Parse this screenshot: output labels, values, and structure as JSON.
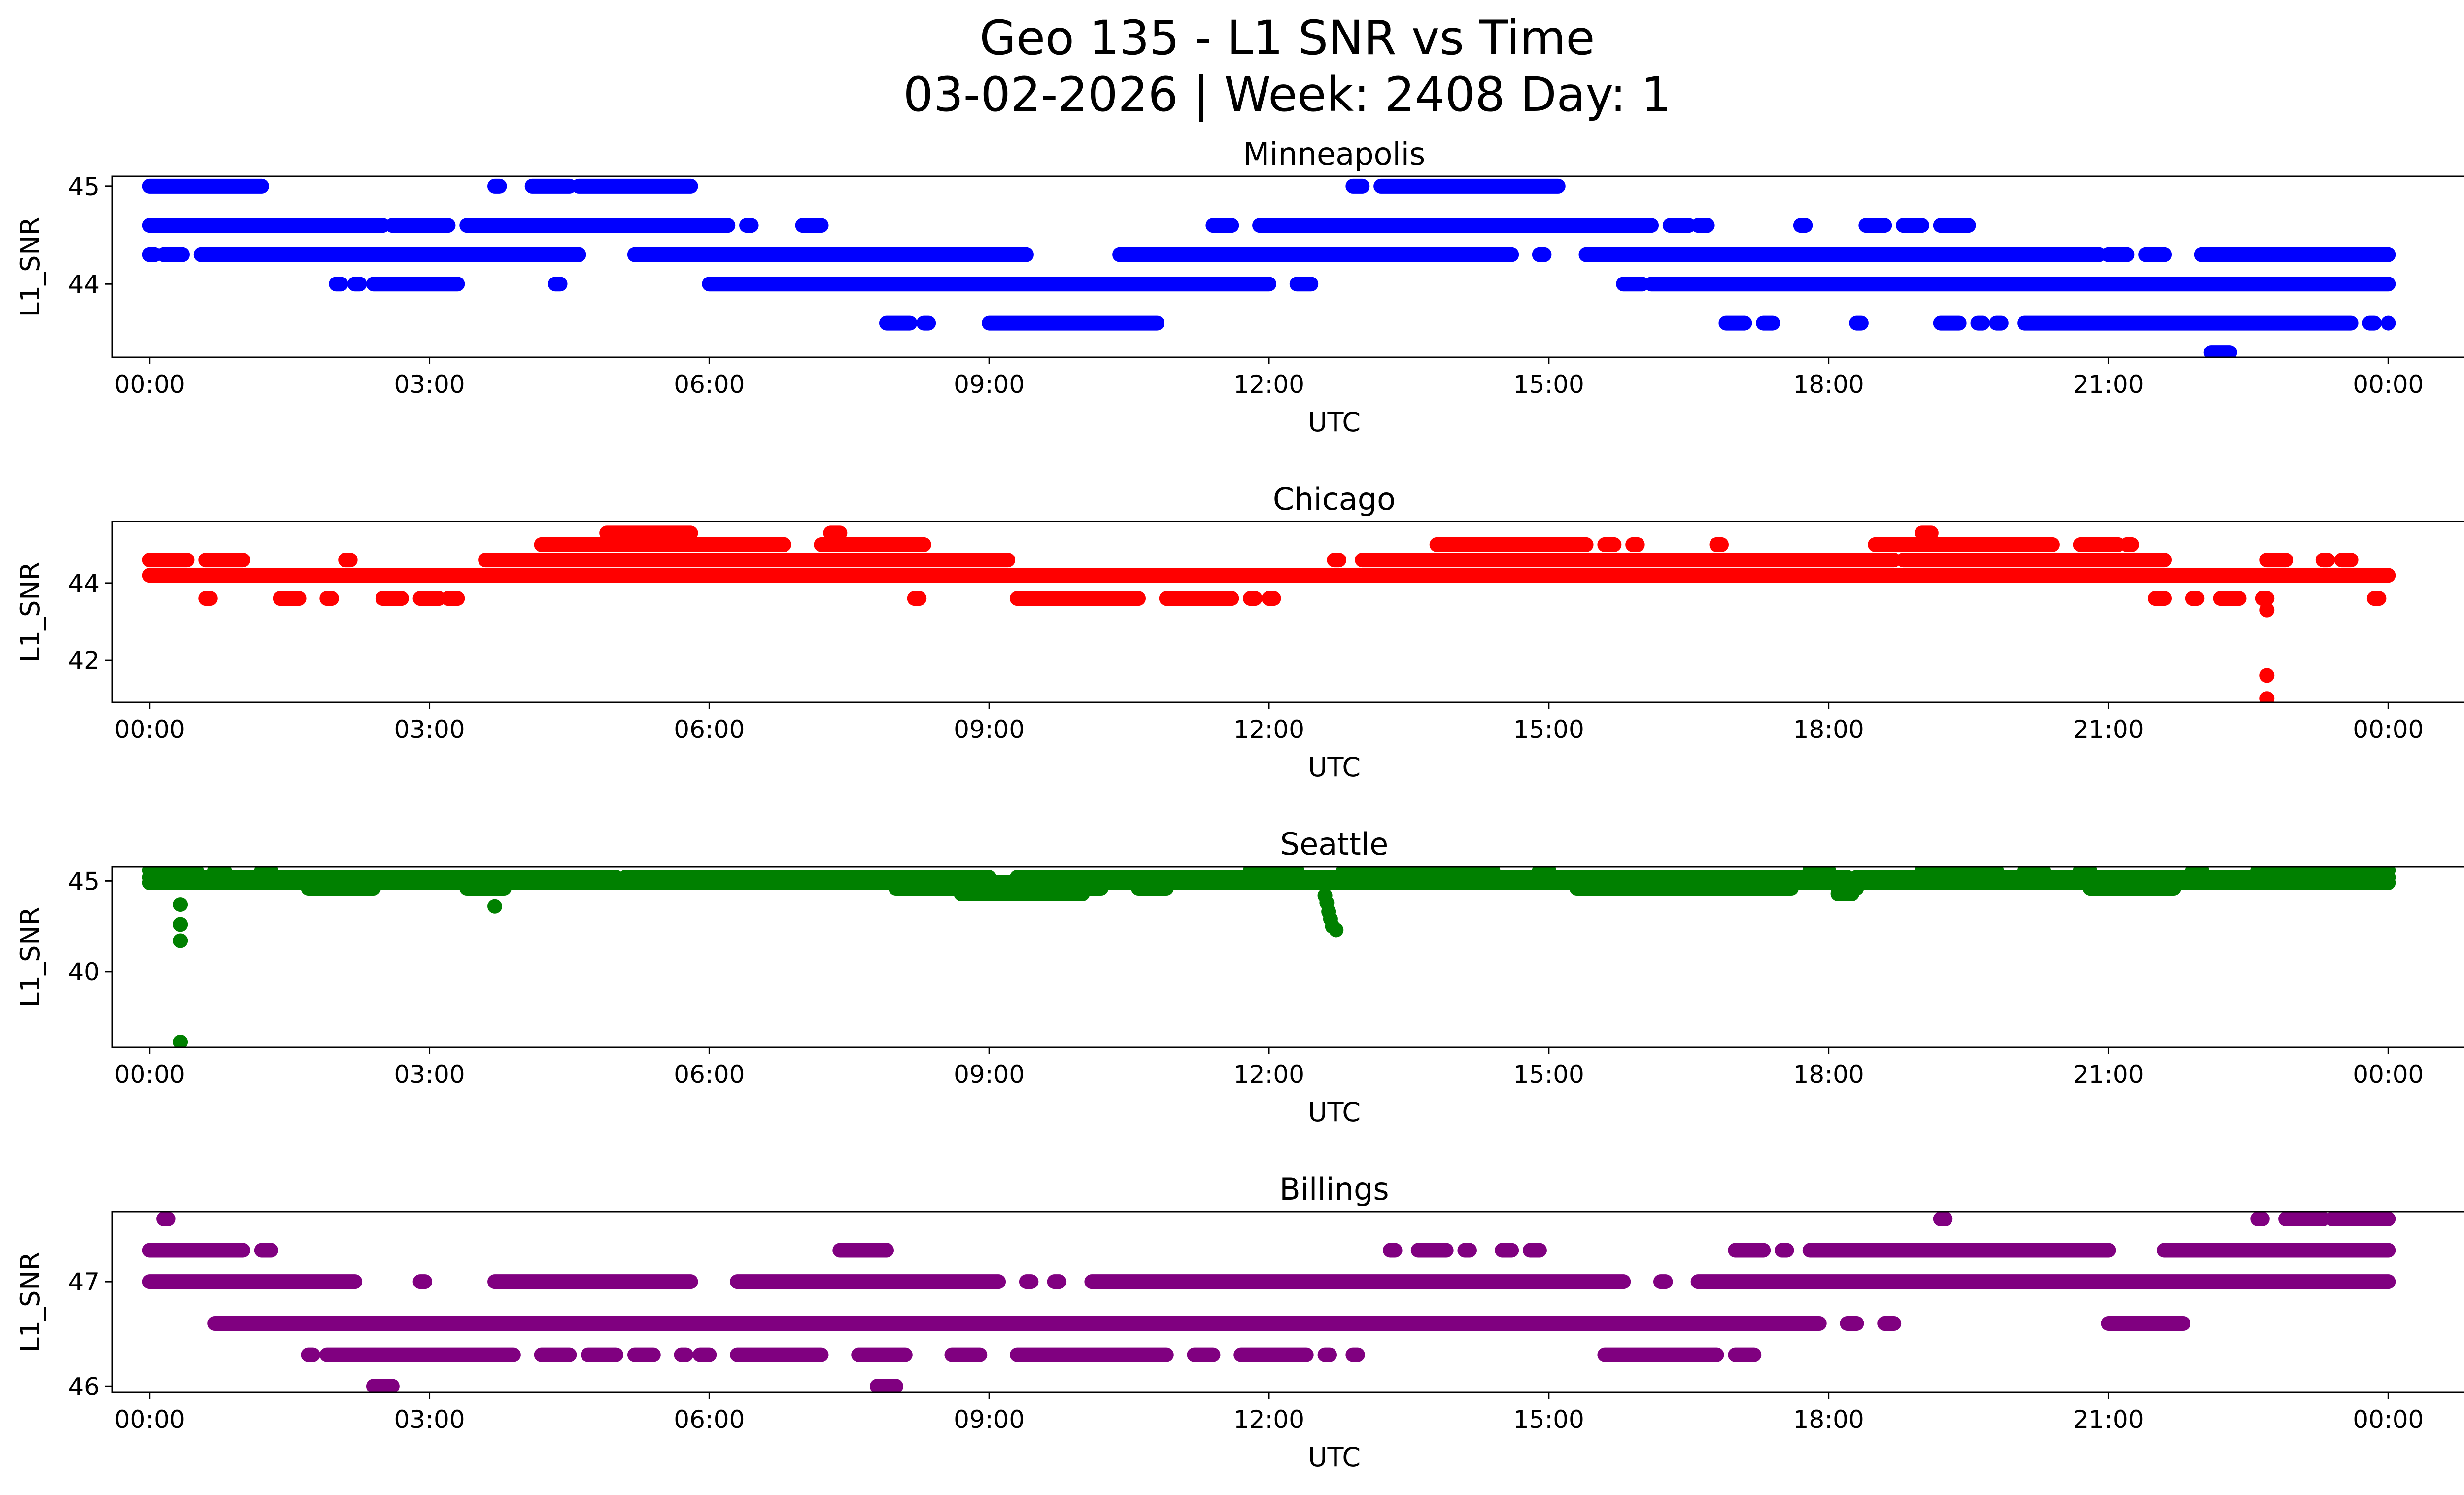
{
  "chart_data": {
    "type": "scatter",
    "title_line1": "Geo 135 - L1 SNR vs Time",
    "title_line2": "03-02-2026 | Week: 2408 Day: 1",
    "xlabel": "UTC",
    "ylabel": "L1_SNR",
    "x_range_hours": [
      -0.4,
      25.8
    ],
    "x_tick_hours": [
      0,
      3,
      6,
      9,
      12,
      15,
      18,
      21,
      24
    ],
    "x_tick_labels": [
      "00:00",
      "03:00",
      "06:00",
      "09:00",
      "12:00",
      "15:00",
      "18:00",
      "21:00",
      "00:00"
    ],
    "panels": [
      {
        "name": "Minneapolis",
        "color": "#0000ff",
        "ylim": [
          43.25,
          45.1
        ],
        "yticks": [
          44,
          45
        ],
        "ytick_labels": [
          "44",
          "45"
        ],
        "bands": [
          {
            "y": 45.0,
            "ranges": [
              [
                0.0,
                1.2
              ],
              [
                3.7,
                3.75
              ],
              [
                4.1,
                4.5
              ],
              [
                4.6,
                5.8
              ],
              [
                12.9,
                13.0
              ],
              [
                13.2,
                15.1
              ]
            ]
          },
          {
            "y": 44.6,
            "ranges": [
              [
                0.0,
                2.5
              ],
              [
                2.6,
                3.2
              ],
              [
                3.4,
                6.2
              ],
              [
                6.4,
                6.45
              ],
              [
                7.0,
                7.2
              ],
              [
                11.4,
                11.6
              ],
              [
                11.9,
                16.1
              ],
              [
                16.3,
                16.5
              ],
              [
                16.6,
                16.7
              ],
              [
                17.7,
                17.75
              ],
              [
                18.4,
                18.6
              ],
              [
                18.8,
                19.0
              ],
              [
                19.2,
                19.5
              ]
            ]
          },
          {
            "y": 44.3,
            "ranges": [
              [
                0.0,
                0.05
              ],
              [
                0.15,
                0.35
              ],
              [
                0.55,
                4.6
              ],
              [
                5.2,
                9.4
              ],
              [
                10.4,
                14.6
              ],
              [
                14.9,
                14.95
              ],
              [
                15.4,
                20.9
              ],
              [
                21.0,
                21.2
              ],
              [
                21.4,
                21.6
              ],
              [
                22.0,
                24.0
              ]
            ]
          },
          {
            "y": 44.0,
            "ranges": [
              [
                2.0,
                2.05
              ],
              [
                2.2,
                2.25
              ],
              [
                2.4,
                3.3
              ],
              [
                4.35,
                4.4
              ],
              [
                6.0,
                12.0
              ],
              [
                12.3,
                12.45
              ],
              [
                15.8,
                16.0
              ],
              [
                16.1,
                24.0
              ]
            ]
          },
          {
            "y": 43.6,
            "ranges": [
              [
                7.9,
                8.15
              ],
              [
                8.3,
                8.35
              ],
              [
                9.0,
                10.8
              ],
              [
                16.9,
                17.1
              ],
              [
                17.3,
                17.4
              ],
              [
                18.3,
                18.35
              ],
              [
                19.2,
                19.4
              ],
              [
                19.6,
                19.65
              ],
              [
                19.8,
                19.85
              ],
              [
                20.1,
                23.6
              ],
              [
                23.8,
                23.85
              ],
              [
                24.0,
                24.0
              ]
            ]
          },
          {
            "y": 43.3,
            "ranges": [
              [
                22.1,
                22.3
              ]
            ]
          }
        ],
        "outliers": []
      },
      {
        "name": "Chicago",
        "color": "#ff0000",
        "ylim": [
          40.9,
          45.6
        ],
        "yticks": [
          42,
          44
        ],
        "ytick_labels": [
          "42",
          "44"
        ],
        "bands": [
          {
            "y": 45.3,
            "ranges": [
              [
                4.9,
                5.8
              ],
              [
                7.3,
                7.4
              ],
              [
                19.0,
                19.1
              ]
            ]
          },
          {
            "y": 45.0,
            "ranges": [
              [
                4.2,
                6.8
              ],
              [
                7.2,
                8.3
              ],
              [
                13.8,
                15.4
              ],
              [
                15.6,
                15.7
              ],
              [
                15.9,
                15.95
              ],
              [
                16.8,
                16.85
              ],
              [
                18.5,
                20.4
              ],
              [
                20.7,
                21.1
              ],
              [
                21.2,
                21.25
              ]
            ]
          },
          {
            "y": 44.6,
            "ranges": [
              [
                0.0,
                0.4
              ],
              [
                0.6,
                1.0
              ],
              [
                2.1,
                2.15
              ],
              [
                3.6,
                9.2
              ],
              [
                12.7,
                12.75
              ],
              [
                13.0,
                18.7
              ],
              [
                18.8,
                21.6
              ],
              [
                22.7,
                22.9
              ],
              [
                23.3,
                23.35
              ],
              [
                23.5,
                23.6
              ]
            ]
          },
          {
            "y": 44.2,
            "ranges": [
              [
                0.0,
                24.0
              ]
            ]
          },
          {
            "y": 43.6,
            "ranges": [
              [
                0.6,
                0.65
              ],
              [
                1.4,
                1.6
              ],
              [
                1.9,
                1.95
              ],
              [
                2.5,
                2.7
              ],
              [
                2.9,
                3.1
              ],
              [
                3.2,
                3.3
              ],
              [
                8.2,
                8.25
              ],
              [
                9.3,
                10.6
              ],
              [
                10.9,
                11.6
              ],
              [
                11.8,
                11.85
              ],
              [
                12.0,
                12.05
              ],
              [
                21.5,
                21.6
              ],
              [
                21.9,
                21.95
              ],
              [
                22.2,
                22.4
              ],
              [
                22.65,
                22.7
              ],
              [
                23.85,
                23.9
              ]
            ]
          }
        ],
        "outliers": [
          {
            "x": 22.7,
            "y": 43.3
          },
          {
            "x": 22.7,
            "y": 41.6
          },
          {
            "x": 22.7,
            "y": 41.0
          }
        ]
      },
      {
        "name": "Seattle",
        "color": "#008000",
        "ylim": [
          35.8,
          45.8
        ],
        "yticks": [
          40,
          45
        ],
        "ytick_labels": [
          "40",
          "45"
        ],
        "bands": [
          {
            "y": 45.6,
            "ranges": [
              [
                0.0,
                0.5
              ],
              [
                0.7,
                0.8
              ],
              [
                1.2,
                1.3
              ],
              [
                11.8,
                12.3
              ],
              [
                12.8,
                14.4
              ],
              [
                14.9,
                15.0
              ],
              [
                17.8,
                18.0
              ],
              [
                19.0,
                19.8
              ],
              [
                20.1,
                20.3
              ],
              [
                20.7,
                20.8
              ],
              [
                21.9,
                22.0
              ],
              [
                22.6,
                24.0
              ]
            ]
          },
          {
            "y": 45.2,
            "ranges": [
              [
                0.0,
                5.0
              ],
              [
                5.1,
                9.0
              ],
              [
                9.3,
                13.2
              ],
              [
                13.3,
                18.2
              ],
              [
                18.3,
                24.0
              ]
            ]
          },
          {
            "y": 44.9,
            "ranges": [
              [
                0.0,
                24.0
              ]
            ]
          },
          {
            "y": 44.6,
            "ranges": [
              [
                1.7,
                2.4
              ],
              [
                3.4,
                3.8
              ],
              [
                8.0,
                10.2
              ],
              [
                10.6,
                10.9
              ],
              [
                15.3,
                17.6
              ],
              [
                18.1,
                18.3
              ],
              [
                20.8,
                21.7
              ]
            ]
          },
          {
            "y": 44.3,
            "ranges": [
              [
                8.7,
                10.0
              ],
              [
                18.1,
                18.25
              ]
            ]
          }
        ],
        "outliers": [
          {
            "x": 0.33,
            "y": 43.7
          },
          {
            "x": 0.33,
            "y": 42.6
          },
          {
            "x": 0.33,
            "y": 41.7
          },
          {
            "x": 0.33,
            "y": 36.1
          },
          {
            "x": 3.7,
            "y": 43.6
          },
          {
            "x": 12.6,
            "y": 44.2
          },
          {
            "x": 12.62,
            "y": 43.8
          },
          {
            "x": 12.64,
            "y": 43.3
          },
          {
            "x": 12.66,
            "y": 42.9
          },
          {
            "x": 12.68,
            "y": 42.5
          },
          {
            "x": 12.72,
            "y": 42.3
          }
        ]
      },
      {
        "name": "Billings",
        "color": "#800080",
        "ylim": [
          45.94,
          47.67
        ],
        "yticks": [
          46,
          47
        ],
        "ytick_labels": [
          "46",
          "47"
        ],
        "bands": [
          {
            "y": 47.6,
            "ranges": [
              [
                0.15,
                0.2
              ],
              [
                19.2,
                19.25
              ],
              [
                22.6,
                22.65
              ],
              [
                22.9,
                23.3
              ],
              [
                23.4,
                24.0
              ]
            ]
          },
          {
            "y": 47.3,
            "ranges": [
              [
                0.0,
                1.0
              ],
              [
                1.2,
                1.3
              ],
              [
                7.4,
                7.9
              ],
              [
                13.3,
                13.35
              ],
              [
                13.6,
                13.9
              ],
              [
                14.1,
                14.15
              ],
              [
                14.5,
                14.6
              ],
              [
                14.8,
                14.9
              ],
              [
                17.0,
                17.3
              ],
              [
                17.5,
                17.55
              ],
              [
                17.8,
                21.0
              ],
              [
                21.6,
                24.0
              ]
            ]
          },
          {
            "y": 47.0,
            "ranges": [
              [
                0.0,
                2.2
              ],
              [
                2.9,
                2.95
              ],
              [
                3.7,
                5.8
              ],
              [
                6.3,
                9.1
              ],
              [
                9.4,
                9.45
              ],
              [
                9.7,
                9.75
              ],
              [
                10.1,
                15.8
              ],
              [
                16.2,
                16.25
              ],
              [
                16.6,
                24.0
              ]
            ]
          },
          {
            "y": 46.6,
            "ranges": [
              [
                0.7,
                17.9
              ],
              [
                18.2,
                18.3
              ],
              [
                18.6,
                18.7
              ],
              [
                21.0,
                21.8
              ]
            ]
          },
          {
            "y": 46.3,
            "ranges": [
              [
                1.7,
                1.75
              ],
              [
                1.9,
                3.9
              ],
              [
                4.2,
                4.5
              ],
              [
                4.7,
                5.0
              ],
              [
                5.2,
                5.4
              ],
              [
                5.7,
                5.75
              ],
              [
                5.9,
                6.0
              ],
              [
                6.3,
                7.2
              ],
              [
                7.6,
                8.1
              ],
              [
                8.6,
                8.9
              ],
              [
                9.3,
                10.9
              ],
              [
                11.2,
                11.4
              ],
              [
                11.7,
                12.4
              ],
              [
                12.6,
                12.65
              ],
              [
                12.9,
                12.95
              ],
              [
                15.6,
                16.8
              ],
              [
                17.0,
                17.2
              ]
            ]
          },
          {
            "y": 46.0,
            "ranges": [
              [
                2.4,
                2.6
              ],
              [
                7.8,
                8.0
              ]
            ]
          }
        ],
        "outliers": []
      }
    ]
  }
}
